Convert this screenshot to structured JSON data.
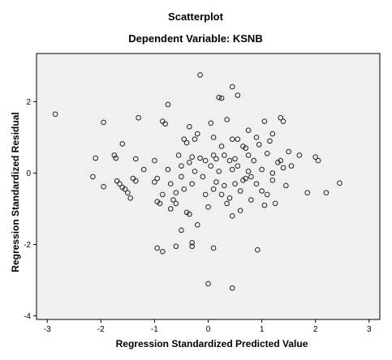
{
  "chart_data": {
    "type": "scatter",
    "title": "Scatterplot",
    "subtitle": "Dependent Variable: KSNB",
    "xlabel": "Regression Standardized Predicted Value",
    "ylabel": "Regression Standardized Residual",
    "xlim": [
      -3.2,
      3.2
    ],
    "ylim": [
      -4.1,
      3.35
    ],
    "xticks": [
      -3,
      -2,
      -1,
      0,
      1,
      2,
      3
    ],
    "yticks": [
      -4,
      -2,
      0,
      2
    ],
    "grid": false,
    "marker": "hollow-circle",
    "plot_background": "#f0f0f0",
    "marker_color": "#222222",
    "points": [
      [
        -2.85,
        1.65
      ],
      [
        -2.15,
        -0.1
      ],
      [
        -2.1,
        0.42
      ],
      [
        -1.95,
        1.42
      ],
      [
        -1.95,
        -0.38
      ],
      [
        -1.75,
        0.5
      ],
      [
        -1.72,
        0.42
      ],
      [
        -1.7,
        -0.22
      ],
      [
        -1.65,
        -0.3
      ],
      [
        -1.6,
        -0.4
      ],
      [
        -1.55,
        -0.45
      ],
      [
        -1.5,
        -0.55
      ],
      [
        -1.6,
        0.82
      ],
      [
        -1.45,
        -0.7
      ],
      [
        -1.4,
        -0.15
      ],
      [
        -1.35,
        -0.22
      ],
      [
        -1.35,
        0.4
      ],
      [
        -1.3,
        1.55
      ],
      [
        -1.2,
        0.1
      ],
      [
        -1.0,
        0.35
      ],
      [
        -0.95,
        -0.15
      ],
      [
        -0.95,
        -0.8
      ],
      [
        -0.9,
        -0.85
      ],
      [
        -0.85,
        1.45
      ],
      [
        -0.8,
        1.38
      ],
      [
        -0.75,
        1.92
      ],
      [
        -0.75,
        0.1
      ],
      [
        -0.7,
        -0.3
      ],
      [
        -0.65,
        -0.75
      ],
      [
        -0.6,
        -0.85
      ],
      [
        -0.6,
        -0.55
      ],
      [
        -0.55,
        0.5
      ],
      [
        -0.5,
        0.2
      ],
      [
        -0.5,
        -0.1
      ],
      [
        -0.45,
        -0.45
      ],
      [
        -0.4,
        -1.1
      ],
      [
        -0.45,
        0.95
      ],
      [
        -0.4,
        0.85
      ],
      [
        -0.35,
        0.3
      ],
      [
        -0.35,
        1.3
      ],
      [
        -0.3,
        0.45
      ],
      [
        -0.3,
        -0.3
      ],
      [
        -0.25,
        0.05
      ],
      [
        -0.2,
        1.1
      ],
      [
        -0.15,
        0.42
      ],
      [
        -0.1,
        -0.1
      ],
      [
        -0.05,
        0.35
      ],
      [
        -0.05,
        -0.6
      ],
      [
        0.0,
        -0.95
      ],
      [
        0.05,
        0.2
      ],
      [
        0.1,
        1.0
      ],
      [
        0.1,
        0.5
      ],
      [
        0.1,
        -0.45
      ],
      [
        0.15,
        0.4
      ],
      [
        0.15,
        -0.25
      ],
      [
        0.2,
        2.12
      ],
      [
        0.2,
        0.05
      ],
      [
        0.25,
        -0.6
      ],
      [
        0.3,
        0.5
      ],
      [
        0.3,
        -0.35
      ],
      [
        0.35,
        1.5
      ],
      [
        0.4,
        0.35
      ],
      [
        0.4,
        -0.7
      ],
      [
        0.45,
        -1.2
      ],
      [
        0.45,
        0.1
      ],
      [
        0.5,
        0.4
      ],
      [
        0.5,
        -0.3
      ],
      [
        0.55,
        0.95
      ],
      [
        0.55,
        0.2
      ],
      [
        0.6,
        -0.5
      ],
      [
        0.6,
        -1.05
      ],
      [
        0.65,
        0.75
      ],
      [
        0.7,
        -0.15
      ],
      [
        0.75,
        0.05
      ],
      [
        0.75,
        0.5
      ],
      [
        0.8,
        -0.75
      ],
      [
        0.85,
        0.35
      ],
      [
        0.9,
        1.0
      ],
      [
        0.9,
        -0.3
      ],
      [
        0.95,
        0.8
      ],
      [
        1.0,
        -0.5
      ],
      [
        1.0,
        0.1
      ],
      [
        1.05,
        1.45
      ],
      [
        1.05,
        -0.9
      ],
      [
        1.1,
        0.55
      ],
      [
        1.1,
        -0.6
      ],
      [
        1.15,
        0.9
      ],
      [
        1.2,
        0.0
      ],
      [
        1.2,
        -0.2
      ],
      [
        1.25,
        -0.85
      ],
      [
        1.3,
        0.3
      ],
      [
        1.35,
        1.55
      ],
      [
        1.4,
        1.45
      ],
      [
        1.4,
        0.15
      ],
      [
        1.45,
        -0.35
      ],
      [
        1.5,
        0.6
      ],
      [
        1.55,
        0.2
      ],
      [
        1.7,
        0.5
      ],
      [
        1.85,
        -0.55
      ],
      [
        2.0,
        0.45
      ],
      [
        2.05,
        0.35
      ],
      [
        2.2,
        -0.55
      ],
      [
        2.45,
        -0.28
      ],
      [
        -0.2,
        -1.45
      ],
      [
        -0.3,
        -1.95
      ],
      [
        -0.5,
        -1.6
      ],
      [
        -0.6,
        -2.05
      ],
      [
        -0.95,
        -2.1
      ],
      [
        -0.85,
        -2.2
      ],
      [
        -0.3,
        -2.05
      ],
      [
        0.1,
        -2.1
      ],
      [
        0.92,
        -2.15
      ],
      [
        0.0,
        -3.1
      ],
      [
        0.45,
        -3.22
      ],
      [
        -0.15,
        2.75
      ],
      [
        0.25,
        2.1
      ],
      [
        0.45,
        2.42
      ],
      [
        0.55,
        2.18
      ],
      [
        0.75,
        1.2
      ],
      [
        1.2,
        1.1
      ],
      [
        -0.35,
        -1.15
      ],
      [
        -0.7,
        -1.0
      ],
      [
        0.35,
        -0.85
      ],
      [
        0.65,
        -0.2
      ],
      [
        0.8,
        -0.1
      ],
      [
        1.35,
        0.35
      ],
      [
        -1.0,
        -0.25
      ],
      [
        -0.85,
        -0.6
      ],
      [
        -0.25,
        0.95
      ],
      [
        0.05,
        1.4
      ],
      [
        0.25,
        0.75
      ],
      [
        0.45,
        0.95
      ],
      [
        0.7,
        0.7
      ]
    ]
  }
}
